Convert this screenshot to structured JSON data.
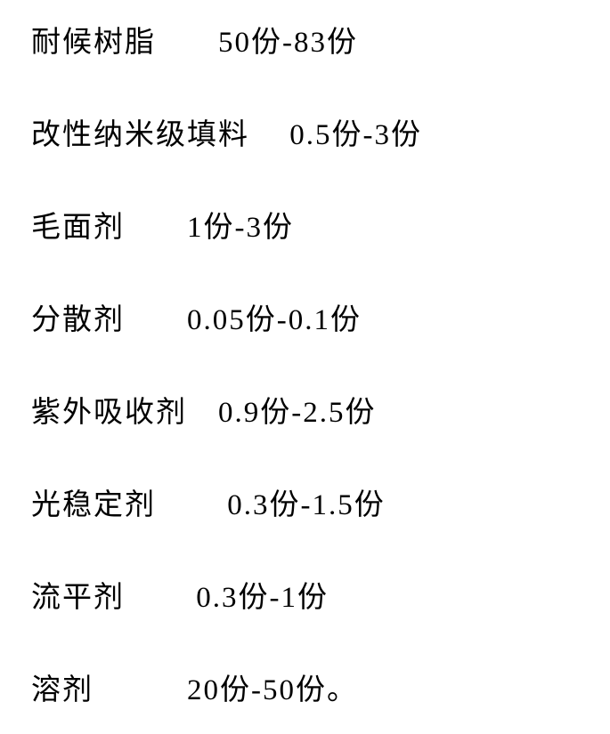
{
  "rows": [
    {
      "label": "耐候树脂",
      "gap": "　　",
      "value": "50份-83份"
    },
    {
      "label": "改性纳米级填料",
      "gap": "　 ",
      "value": "0.5份-3份"
    },
    {
      "label": "毛面剂",
      "gap": "　　",
      "value": "1份-3份"
    },
    {
      "label": "分散剂",
      "gap": "　　",
      "value": "0.05份-0.1份"
    },
    {
      "label": "紫外吸收剂",
      "gap": "　",
      "value": "0.9份-2.5份"
    },
    {
      "label": "光稳定剂",
      "gap": "　　 ",
      "value": "0.3份-1.5份"
    },
    {
      "label": "流平剂",
      "gap": "　　 ",
      "value": "0.3份-1份"
    },
    {
      "label": "溶剂",
      "gap": "　　　",
      "value": "20份-50份。"
    }
  ],
  "style": {
    "font_size_pt": 25,
    "text_color": "#000000",
    "background_color": "#ffffff",
    "font_family": "SimSun"
  }
}
